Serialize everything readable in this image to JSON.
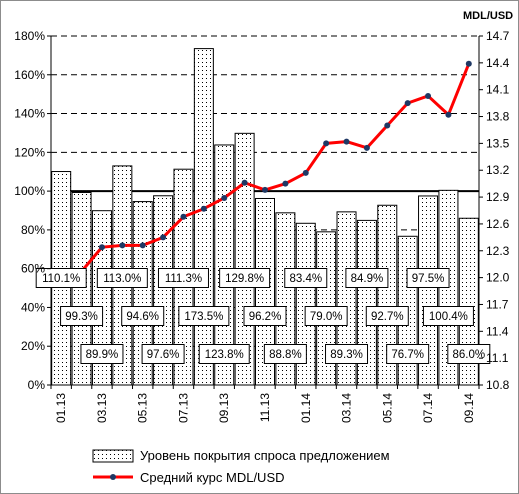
{
  "chart_data": {
    "type": "bar",
    "x_tick_labels": [
      "01.13",
      "03.13",
      "05.13",
      "07.13",
      "09.13",
      "11.13",
      "01.14",
      "03.14",
      "05.14",
      "07.14",
      "09.14"
    ],
    "categories": [
      "01.13",
      "02.13",
      "03.13",
      "04.13",
      "05.13",
      "06.13",
      "07.13",
      "08.13",
      "09.13",
      "10.13",
      "11.13",
      "12.13",
      "01.14",
      "02.14",
      "03.14",
      "04.14",
      "05.14",
      "06.14",
      "07.14",
      "08.14",
      "09.14"
    ],
    "series": [
      {
        "name": "Уровень покрытия спроса предложением",
        "type": "bar",
        "axis": "left",
        "values": [
          110.1,
          99.3,
          89.9,
          113.0,
          94.6,
          97.6,
          111.3,
          173.5,
          123.8,
          129.8,
          96.2,
          88.8,
          83.4,
          79.0,
          89.3,
          84.9,
          92.7,
          76.7,
          97.5,
          100.4,
          86.0
        ],
        "labels": [
          "110.1%",
          "99.3%",
          "89.9%",
          "113.0%",
          "94.6%",
          "97.6%",
          "111.3%",
          "173.5%",
          "123.8%",
          "129.8%",
          "96.2%",
          "88.8%",
          "83.4%",
          "79.0%",
          "89.3%",
          "84.9%",
          "92.7%",
          "76.7%",
          "97.5%",
          "100.4%",
          "86.0%"
        ]
      },
      {
        "name": "Средний курс MDL/USD",
        "type": "line",
        "axis": "right",
        "color": "#ff0000",
        "marker_color": "#1f3864",
        "values": [
          12.07,
          12.07,
          12.34,
          12.36,
          12.36,
          12.45,
          12.68,
          12.77,
          12.89,
          13.06,
          12.98,
          13.05,
          13.17,
          13.5,
          13.52,
          13.45,
          13.7,
          13.95,
          14.03,
          13.82,
          14.39
        ]
      }
    ],
    "y_left": {
      "ticks": [
        "0%",
        "20%",
        "40%",
        "60%",
        "80%",
        "100%",
        "120%",
        "140%",
        "160%",
        "180%"
      ],
      "ylim": [
        0,
        180
      ],
      "step": 20
    },
    "y_right": {
      "label": "MDL/USD",
      "ticks": [
        "10.8",
        "11.1",
        "11.4",
        "11.7",
        "12.0",
        "12.3",
        "12.6",
        "12.9",
        "13.2",
        "13.5",
        "13.8",
        "14.1",
        "14.4",
        "14.7"
      ],
      "ylim": [
        10.8,
        14.7
      ],
      "step": 0.3
    },
    "gridlines": "dashed horizontal, solid at 100%",
    "legend": {
      "position": "bottom"
    }
  }
}
